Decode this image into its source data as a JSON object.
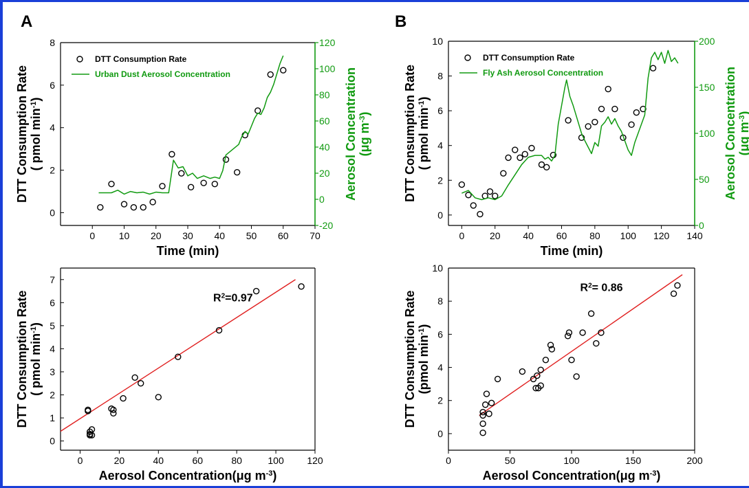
{
  "figure": {
    "border_color": "#1a3fd8",
    "axis_color": "#000000",
    "secondary_axis_color": "#109a10",
    "fit_line_color": "#e02020",
    "marker_style": "open-circle"
  },
  "panels": [
    {
      "letter": "A"
    },
    {
      "letter": "B"
    }
  ],
  "chart_data": [
    {
      "id": "A-top",
      "type": "scatter",
      "title": "",
      "xlabel": "Time (min)",
      "ylabel_line1": "DTT Consumption Rate",
      "ylabel_line2": "( pmol min",
      "ylabel_sup": "-1",
      "ylabel_close": ")",
      "y2label_line1": "Aerosol Concentration",
      "y2label_line2": "(μg m",
      "y2label_sup": "-3",
      "y2label_close": ")",
      "xlim": [
        -10,
        70
      ],
      "ylim": [
        -0.6,
        8
      ],
      "y2lim": [
        -20,
        120
      ],
      "xticks": [
        0,
        10,
        20,
        30,
        40,
        50,
        60,
        70
      ],
      "yticks": [
        0,
        2,
        4,
        6,
        8
      ],
      "y2ticks": [
        -20,
        0,
        20,
        40,
        60,
        80,
        100,
        120
      ],
      "legend": {
        "position": "top-left",
        "entries": [
          "DTT Consumption Rate",
          "Urban Dust Aerosol Concentration"
        ]
      },
      "series": [
        {
          "name": "DTT Consumption Rate",
          "kind": "scatter",
          "axis": "left",
          "x": [
            2.5,
            6,
            10,
            13,
            16,
            19,
            22,
            25,
            28,
            31,
            35,
            38.5,
            42,
            45.5,
            48,
            52,
            56,
            60
          ],
          "y": [
            0.25,
            1.35,
            0.4,
            0.25,
            0.25,
            0.5,
            1.25,
            2.75,
            1.85,
            1.2,
            1.4,
            1.35,
            2.5,
            1.9,
            3.65,
            4.8,
            6.5,
            6.7
          ]
        },
        {
          "name": "Urban Dust Aerosol Concentration",
          "kind": "line",
          "axis": "right",
          "x": [
            2,
            6,
            8,
            10,
            12,
            14,
            16,
            18,
            20,
            22,
            24,
            25.5,
            27,
            28.5,
            30,
            31.5,
            33,
            35,
            37,
            38.5,
            40,
            41,
            42,
            44,
            46,
            47,
            48,
            49,
            50,
            51,
            52,
            53,
            54,
            55,
            56,
            57,
            58,
            59,
            60
          ],
          "y": [
            5,
            5,
            7,
            4,
            6,
            5,
            5.5,
            4,
            5.5,
            5,
            5,
            30,
            24,
            25,
            18,
            20,
            16,
            18,
            16,
            17,
            16,
            22,
            34,
            38,
            42,
            48,
            52,
            50,
            56,
            62,
            66,
            65,
            70,
            78,
            82,
            88,
            96,
            104,
            110
          ]
        }
      ]
    },
    {
      "id": "B-top",
      "type": "scatter",
      "title": "",
      "xlabel": "Time (min)",
      "ylabel_line1": "DTT Consumption Rate",
      "ylabel_line2": "( pmol min",
      "ylabel_sup": "-1",
      "ylabel_close": ")",
      "y2label_line1": "Aerosol Concentration",
      "y2label_line2": "(μg m",
      "y2label_sup": "-3",
      "y2label_close": ")",
      "xlim": [
        -8,
        140
      ],
      "ylim": [
        -0.6,
        10
      ],
      "y2lim": [
        0,
        200
      ],
      "xticks": [
        0,
        20,
        40,
        60,
        80,
        100,
        120,
        140
      ],
      "yticks": [
        0,
        2,
        4,
        6,
        8,
        10
      ],
      "y2ticks": [
        0,
        50,
        100,
        150,
        200
      ],
      "legend": {
        "position": "top-left",
        "entries": [
          "DTT Consumption Rate",
          "Fly Ash Aerosol Concentration"
        ]
      },
      "series": [
        {
          "name": "DTT Consumption Rate",
          "kind": "scatter",
          "axis": "left",
          "x": [
            0,
            4,
            7,
            11,
            14,
            17,
            20,
            25,
            28,
            32,
            35,
            38,
            42,
            48,
            51,
            55,
            64,
            72,
            76,
            80,
            84,
            88,
            92,
            97,
            102,
            105,
            109,
            115
          ],
          "y": [
            1.75,
            1.15,
            0.55,
            0.05,
            1.1,
            1.35,
            1.1,
            2.4,
            3.3,
            3.75,
            3.3,
            3.5,
            3.85,
            2.9,
            2.75,
            3.45,
            5.45,
            4.45,
            5.1,
            5.35,
            6.1,
            7.25,
            6.1,
            4.45,
            5.2,
            5.9,
            6.1,
            8.45
          ]
        },
        {
          "name": "Fly Ash Aerosol Concentration",
          "kind": "line",
          "axis": "right",
          "x": [
            0,
            4,
            8,
            12,
            16,
            20,
            24,
            28,
            32,
            36,
            40,
            44,
            48,
            50,
            52,
            54,
            56,
            58,
            60,
            62,
            63,
            65,
            67,
            70,
            72,
            74,
            76,
            78,
            80,
            82,
            84,
            86,
            88,
            90,
            92,
            94,
            96,
            98,
            100,
            102,
            104,
            106,
            108,
            110,
            112,
            114,
            116,
            118,
            120,
            122,
            124,
            126,
            128,
            130
          ],
          "y": [
            35,
            38,
            30,
            28,
            30,
            28,
            32,
            44,
            55,
            66,
            74,
            76,
            76,
            72,
            74,
            70,
            76,
            110,
            130,
            150,
            158,
            140,
            130,
            112,
            100,
            92,
            85,
            78,
            90,
            86,
            108,
            112,
            118,
            110,
            116,
            108,
            102,
            92,
            82,
            76,
            90,
            100,
            110,
            120,
            160,
            182,
            188,
            180,
            188,
            176,
            190,
            178,
            182,
            176
          ]
        }
      ]
    },
    {
      "id": "A-bottom",
      "type": "scatter",
      "title": "",
      "xlabel": "Aerosol Concentration(μg m",
      "xlabel_sup": "-3",
      "xlabel_close": ")",
      "ylabel_line1": "DTT Consumption Rate",
      "ylabel_line2": "( pmol min",
      "ylabel_sup": "-1",
      "ylabel_close": ")",
      "xlim": [
        -10,
        120
      ],
      "ylim": [
        -0.4,
        7.5
      ],
      "xticks": [
        0,
        20,
        40,
        60,
        80,
        100,
        120
      ],
      "yticks": [
        0,
        1,
        2,
        3,
        4,
        5,
        6,
        7
      ],
      "annotation": {
        "text_before": "R",
        "sup": "2",
        "text_after": "=0.97",
        "x": 68,
        "y": 6.05
      },
      "fit": {
        "x": [
          -10,
          110
        ],
        "y": [
          0.42,
          7.0
        ]
      },
      "series": [
        {
          "name": "",
          "kind": "scatter",
          "x": [
            4,
            4,
            5,
            5,
            5,
            6,
            6,
            16,
            17,
            17,
            22,
            28,
            31,
            40,
            50,
            71,
            90,
            113
          ],
          "y": [
            1.35,
            1.3,
            0.4,
            0.3,
            0.25,
            0.25,
            0.5,
            1.4,
            1.35,
            1.2,
            1.85,
            2.75,
            2.5,
            1.9,
            3.65,
            4.8,
            6.5,
            6.7
          ]
        }
      ]
    },
    {
      "id": "B-bottom",
      "type": "scatter",
      "title": "",
      "xlabel": "Aerosol Concentration(μg m",
      "xlabel_sup": "-3",
      "xlabel_close": ")",
      "ylabel_line1": "DTT Consumption Rate",
      "ylabel_line2": "(pmol min",
      "ylabel_sup": "-1",
      "ylabel_close": ")",
      "xlim": [
        0,
        200
      ],
      "ylim": [
        -1,
        10
      ],
      "xticks": [
        0,
        50,
        100,
        150,
        200
      ],
      "yticks": [
        0,
        2,
        4,
        6,
        8,
        10
      ],
      "annotation": {
        "text_before": "R",
        "sup": "2",
        "text_after": "= 0.86",
        "x": 107,
        "y": 8.6
      },
      "fit": {
        "x": [
          25,
          190
        ],
        "y": [
          1.1,
          9.6
        ]
      },
      "series": [
        {
          "name": "",
          "kind": "scatter",
          "x": [
            28,
            28,
            28,
            28,
            30,
            31,
            33,
            35,
            40,
            60,
            69,
            71,
            72,
            73,
            75,
            75,
            79,
            83,
            84,
            97,
            98,
            100,
            104,
            109,
            116,
            120,
            124,
            183,
            186
          ],
          "y": [
            0.05,
            0.6,
            1.1,
            1.3,
            1.75,
            2.4,
            1.2,
            1.85,
            3.3,
            3.75,
            3.3,
            2.75,
            3.5,
            2.75,
            3.85,
            2.9,
            4.45,
            5.35,
            5.1,
            5.9,
            6.1,
            4.45,
            3.45,
            6.1,
            7.25,
            5.45,
            6.1,
            8.45,
            8.95
          ]
        }
      ]
    }
  ]
}
